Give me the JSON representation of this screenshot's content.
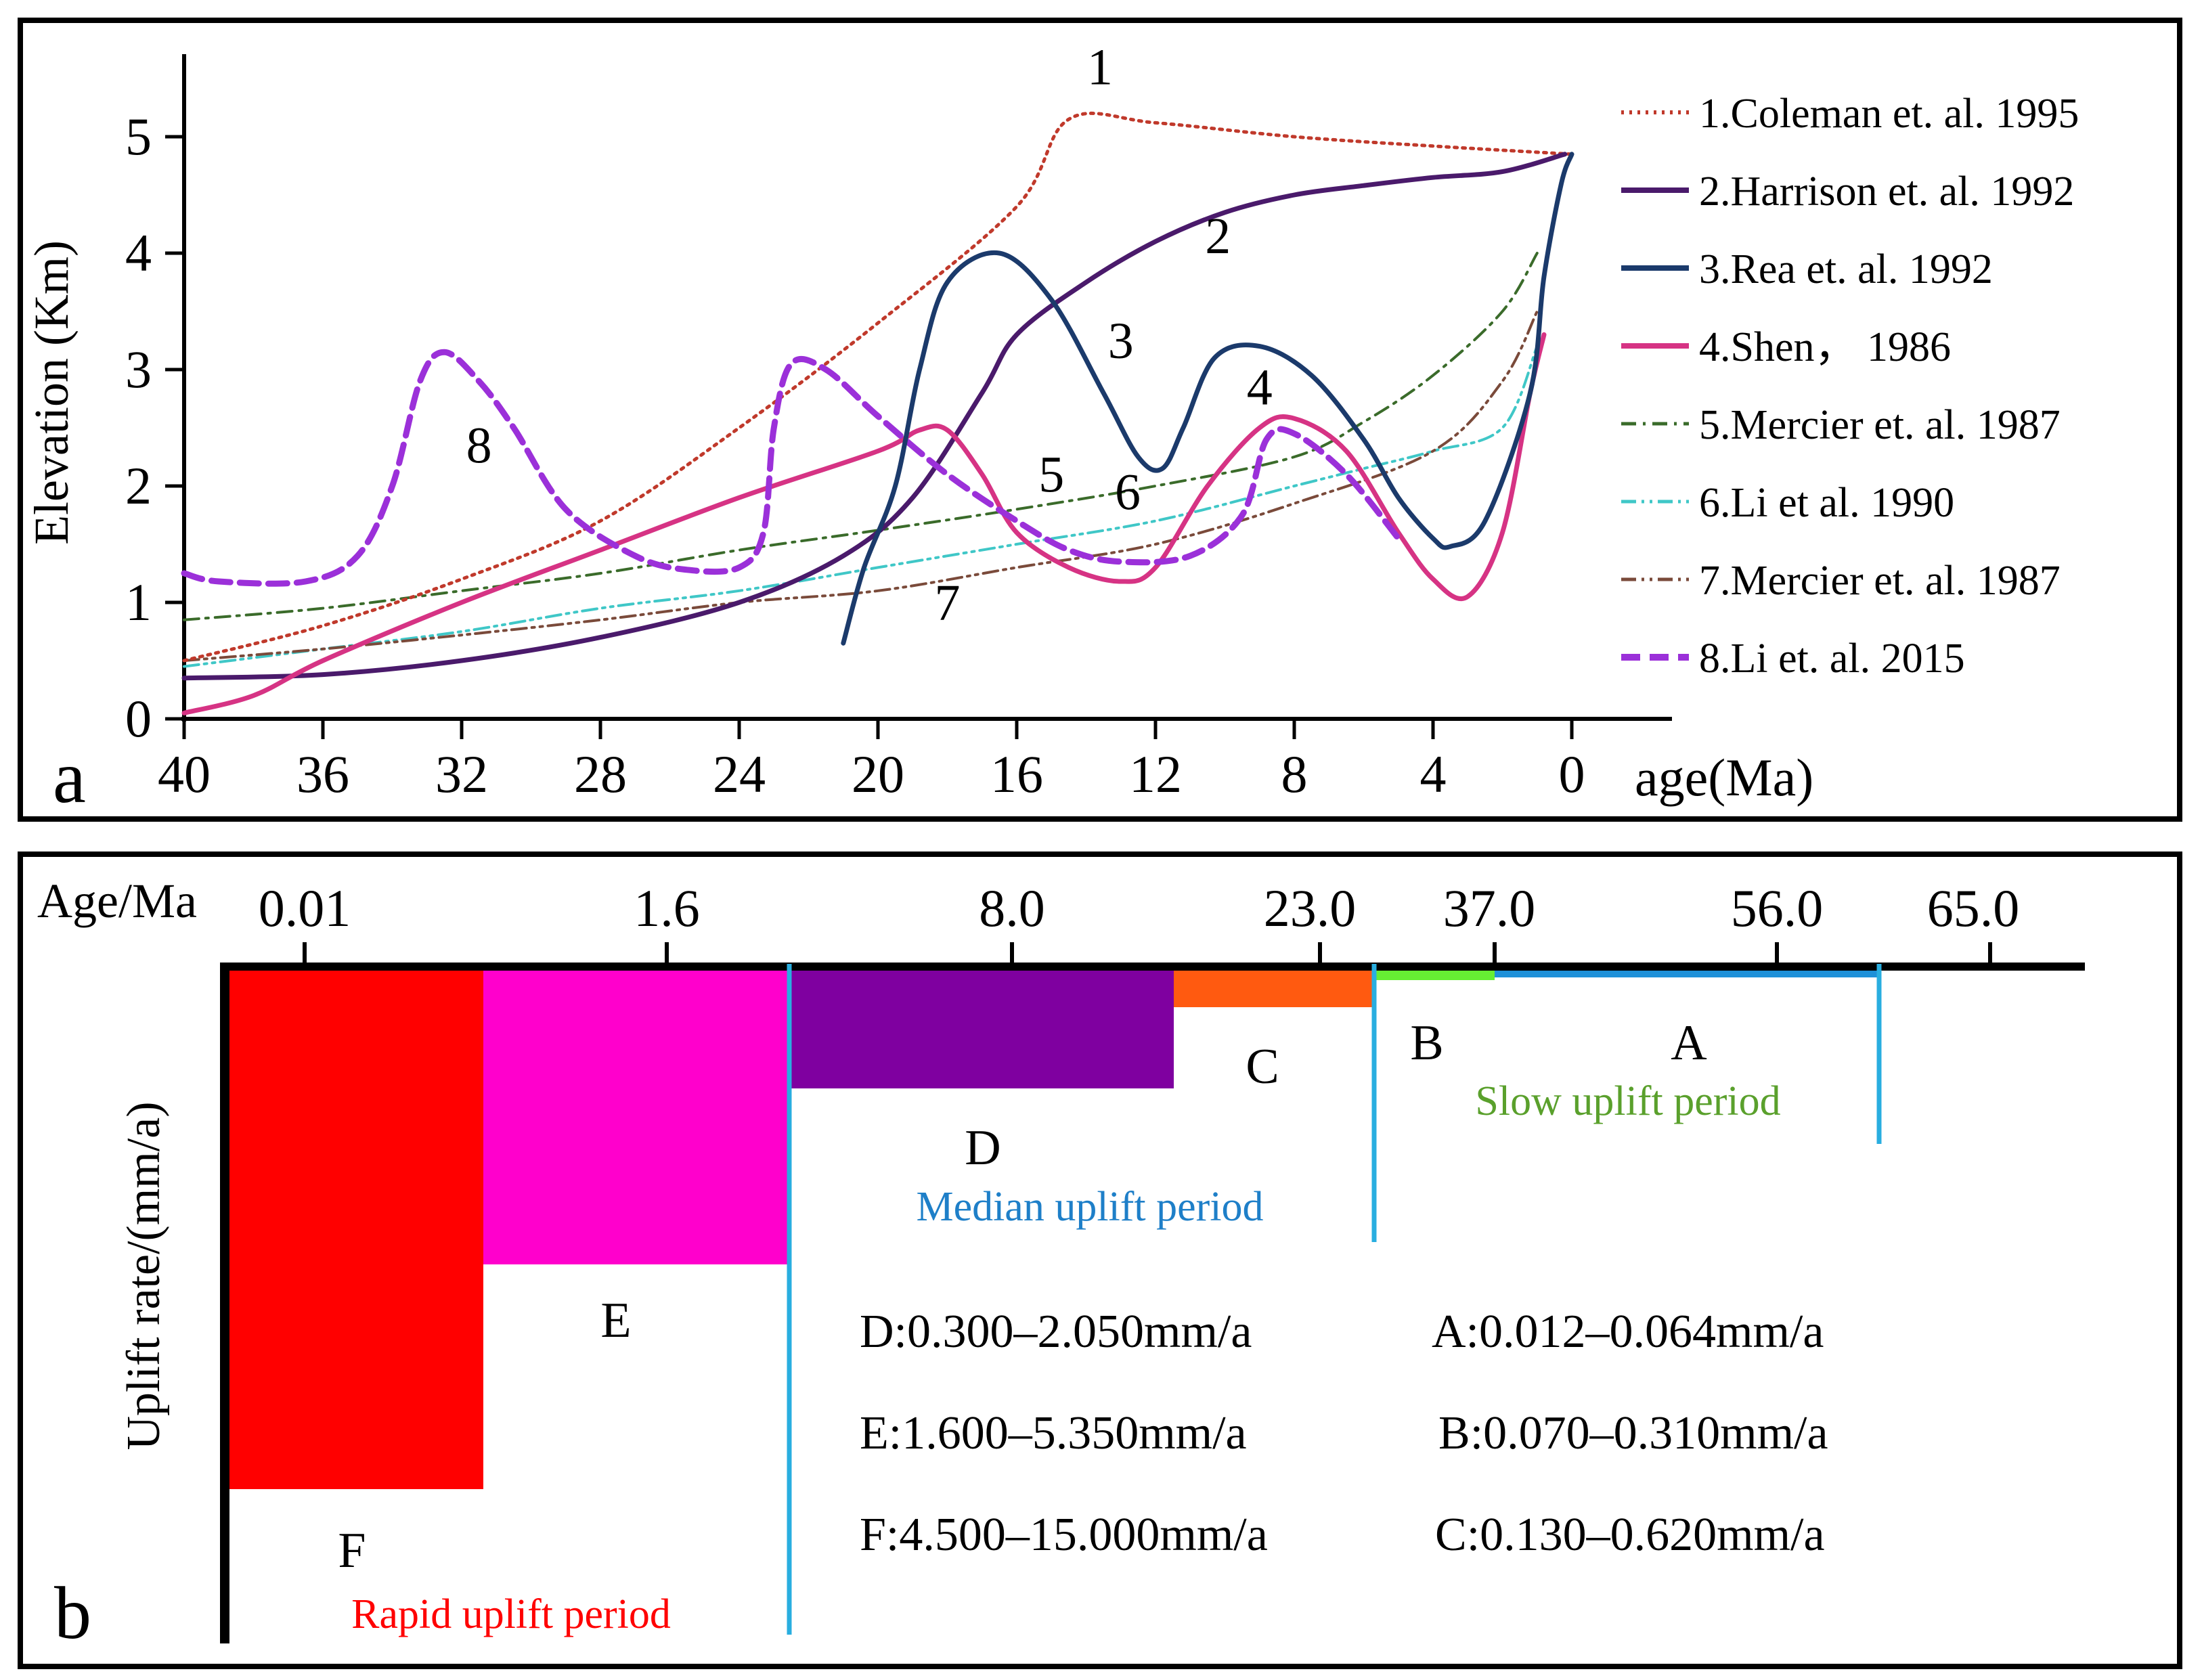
{
  "chart_data": [
    {
      "panel": "a",
      "type": "line",
      "panel_label": "a",
      "ylabel": "Elevation (Km)",
      "xlabel": "age(Ma)",
      "x_reversed": true,
      "xlim": [
        40,
        0
      ],
      "ylim": [
        0,
        5.5
      ],
      "x_ticks": [
        40,
        36,
        32,
        28,
        24,
        20,
        16,
        12,
        8,
        4,
        0
      ],
      "y_ticks": [
        0,
        1,
        2,
        3,
        4,
        5
      ],
      "legend_position": "right",
      "series": [
        {
          "id": "1",
          "name": "1.Coleman et. al. 1995",
          "color": "#c0392b",
          "style": "dotted",
          "curve_label": "1",
          "label_at": [
            13.6,
            5.45
          ],
          "points": [
            [
              40,
              0.5
            ],
            [
              36,
              0.8
            ],
            [
              32,
              1.2
            ],
            [
              28,
              1.7
            ],
            [
              24,
              2.5
            ],
            [
              20,
              3.4
            ],
            [
              16,
              4.4
            ],
            [
              14.5,
              5.15
            ],
            [
              12,
              5.12
            ],
            [
              8,
              5.0
            ],
            [
              4,
              4.92
            ],
            [
              0,
              4.85
            ]
          ]
        },
        {
          "id": "2",
          "name": "2.Harrison et. al. 1992",
          "color": "#4a1a6b",
          "style": "solid",
          "curve_label": "2",
          "label_at": [
            10.2,
            4.0
          ],
          "points": [
            [
              40,
              0.35
            ],
            [
              36,
              0.38
            ],
            [
              32,
              0.5
            ],
            [
              28,
              0.7
            ],
            [
              24,
              1.0
            ],
            [
              21,
              1.4
            ],
            [
              19,
              1.9
            ],
            [
              17,
              2.8
            ],
            [
              16,
              3.3
            ],
            [
              14,
              3.75
            ],
            [
              12,
              4.1
            ],
            [
              10,
              4.35
            ],
            [
              8,
              4.5
            ],
            [
              6,
              4.58
            ],
            [
              4,
              4.65
            ],
            [
              2,
              4.7
            ],
            [
              0.2,
              4.85
            ]
          ]
        },
        {
          "id": "3",
          "name": "3.Rea et. al. 1992",
          "color": "#1b3a6b",
          "style": "solid",
          "curve_label": "3",
          "label_at": [
            13.0,
            3.1
          ],
          "points": [
            [
              21,
              0.65
            ],
            [
              20.4,
              1.3
            ],
            [
              19.5,
              2.0
            ],
            [
              18.8,
              3.0
            ],
            [
              18,
              3.75
            ],
            [
              16.5,
              4.0
            ],
            [
              15,
              3.6
            ],
            [
              13.5,
              2.8
            ],
            [
              12.5,
              2.25
            ],
            [
              11.8,
              2.15
            ],
            [
              11.2,
              2.5
            ],
            [
              10.3,
              3.1
            ],
            [
              9,
              3.2
            ],
            [
              7.5,
              2.95
            ],
            [
              6,
              2.4
            ],
            [
              5,
              1.9
            ],
            [
              4,
              1.55
            ],
            [
              3.5,
              1.48
            ],
            [
              2.5,
              1.7
            ],
            [
              1.2,
              2.8
            ],
            [
              0.8,
              3.8
            ],
            [
              0.3,
              4.6
            ],
            [
              0,
              4.85
            ]
          ]
        },
        {
          "id": "4",
          "name": "4.Shen，  1986",
          "color": "#d63384",
          "style": "solid",
          "curve_label": "4",
          "label_at": [
            9.0,
            2.7
          ],
          "points": [
            [
              40,
              0.05
            ],
            [
              38,
              0.2
            ],
            [
              36,
              0.5
            ],
            [
              32,
              1.0
            ],
            [
              28,
              1.45
            ],
            [
              24,
              1.9
            ],
            [
              20,
              2.3
            ],
            [
              18.8,
              2.48
            ],
            [
              18,
              2.48
            ],
            [
              17,
              2.1
            ],
            [
              16,
              1.6
            ],
            [
              14.5,
              1.3
            ],
            [
              13,
              1.18
            ],
            [
              12,
              1.3
            ],
            [
              10.5,
              2.0
            ],
            [
              9,
              2.5
            ],
            [
              8,
              2.58
            ],
            [
              6.5,
              2.3
            ],
            [
              5,
              1.6
            ],
            [
              4,
              1.2
            ],
            [
              3,
              1.05
            ],
            [
              2,
              1.6
            ],
            [
              1.2,
              2.8
            ],
            [
              0.8,
              3.3
            ]
          ]
        },
        {
          "id": "5",
          "name": "5.Mercier et. al. 1987",
          "color": "#3a6b2a",
          "style": "dashdot",
          "curve_label": "5",
          "label_at": [
            15.0,
            1.95
          ],
          "points": [
            [
              40,
              0.85
            ],
            [
              36,
              0.95
            ],
            [
              32,
              1.1
            ],
            [
              28,
              1.25
            ],
            [
              24,
              1.45
            ],
            [
              20,
              1.62
            ],
            [
              16,
              1.8
            ],
            [
              12,
              2.0
            ],
            [
              8,
              2.25
            ],
            [
              6,
              2.55
            ],
            [
              4,
              2.95
            ],
            [
              2,
              3.5
            ],
            [
              1,
              4.0
            ]
          ]
        },
        {
          "id": "6",
          "name": "6.Li et al. 1990",
          "color": "#3fc7c7",
          "style": "dashdotdot",
          "curve_label": "6",
          "label_at": [
            12.8,
            1.8
          ],
          "points": [
            [
              40,
              0.45
            ],
            [
              36,
              0.6
            ],
            [
              32,
              0.75
            ],
            [
              28,
              0.95
            ],
            [
              24,
              1.1
            ],
            [
              20,
              1.3
            ],
            [
              16,
              1.5
            ],
            [
              12,
              1.7
            ],
            [
              8,
              2.0
            ],
            [
              6,
              2.15
            ],
            [
              4,
              2.3
            ],
            [
              2,
              2.5
            ],
            [
              1,
              3.2
            ]
          ]
        },
        {
          "id": "7",
          "name": "7.Mercier et. al. 1987",
          "color": "#7a4a3a",
          "style": "dashdotdot",
          "curve_label": "7",
          "label_at": [
            18.0,
            0.85
          ],
          "points": [
            [
              40,
              0.5
            ],
            [
              36,
              0.6
            ],
            [
              32,
              0.72
            ],
            [
              28,
              0.85
            ],
            [
              24,
              1.0
            ],
            [
              20,
              1.1
            ],
            [
              16,
              1.3
            ],
            [
              12,
              1.5
            ],
            [
              8,
              1.85
            ],
            [
              4,
              2.3
            ],
            [
              2,
              2.9
            ],
            [
              1,
              3.5
            ]
          ]
        },
        {
          "id": "8",
          "name": "8.Li et. al. 2015",
          "color": "#9b30d9",
          "style": "dashed",
          "curve_label": "8",
          "label_at": [
            31.5,
            2.2
          ],
          "points": [
            [
              40,
              1.25
            ],
            [
              39,
              1.18
            ],
            [
              36.5,
              1.18
            ],
            [
              35,
              1.4
            ],
            [
              34,
              2.0
            ],
            [
              33.2,
              2.9
            ],
            [
              32.5,
              3.15
            ],
            [
              31.5,
              2.9
            ],
            [
              30.5,
              2.5
            ],
            [
              29,
              1.8
            ],
            [
              27,
              1.4
            ],
            [
              25.5,
              1.28
            ],
            [
              24,
              1.3
            ],
            [
              23.3,
              1.6
            ],
            [
              23,
              2.5
            ],
            [
              22.5,
              3.05
            ],
            [
              21.5,
              3.0
            ],
            [
              20,
              2.6
            ],
            [
              18,
              2.1
            ],
            [
              16,
              1.7
            ],
            [
              14.5,
              1.45
            ],
            [
              13,
              1.35
            ],
            [
              11,
              1.4
            ],
            [
              9.5,
              1.75
            ],
            [
              8.8,
              2.4
            ],
            [
              8,
              2.45
            ],
            [
              6.5,
              2.1
            ],
            [
              5,
              1.55
            ]
          ]
        }
      ]
    },
    {
      "panel": "b",
      "type": "bar",
      "panel_label": "b",
      "xlabel": "Age/Ma",
      "ylabel": "Uplift rate/(mm/a)",
      "y_axis_inverted": true,
      "top_ticks": [
        "0.01",
        "1.6",
        "8.0",
        "23.0",
        "37.0",
        "56.0",
        "65.0"
      ],
      "periods": [
        {
          "id": "F",
          "label": "F",
          "color": "#ff0000",
          "rate_max": 15.0,
          "age_span": [
            "0.01",
            "~1.0"
          ]
        },
        {
          "id": "E",
          "label": "E",
          "color": "#ff00cc",
          "rate_max": 5.35,
          "age_span": [
            "~1.0",
            "~3.0"
          ]
        },
        {
          "id": "D",
          "label": "D",
          "color": "#7f00a0",
          "rate_max": 2.05,
          "age_span": [
            "~3.0",
            "~15.0"
          ]
        },
        {
          "id": "C",
          "label": "C",
          "color": "#ff5a10",
          "rate_max": 0.62,
          "age_span": [
            "~15.0",
            "~30.0"
          ]
        },
        {
          "id": "B",
          "label": "B",
          "color": "#66ee33",
          "rate_max": 0.31,
          "age_span": [
            "~30.0",
            "37.0"
          ]
        },
        {
          "id": "A",
          "label": "A",
          "color": "#1e90d8",
          "rate_max": 0.064,
          "age_span": [
            "37.0",
            "~62.0"
          ]
        }
      ],
      "period_labels": {
        "rapid": {
          "text": "Rapid uplift period",
          "color": "#ff0000"
        },
        "median": {
          "text": "Median uplift period",
          "color": "#1e7fc8"
        },
        "slow": {
          "text": "Slow uplift period",
          "color": "#5aa02c"
        }
      },
      "rate_table": {
        "col1": [
          "D:0.300–2.050mm/a",
          "E:1.600–5.350mm/a",
          "F:4.500–15.000mm/a"
        ],
        "col2": [
          "A:0.012–0.064mm/a",
          "B:0.070–0.310mm/a",
          "C:0.130–0.620mm/a"
        ]
      }
    }
  ]
}
